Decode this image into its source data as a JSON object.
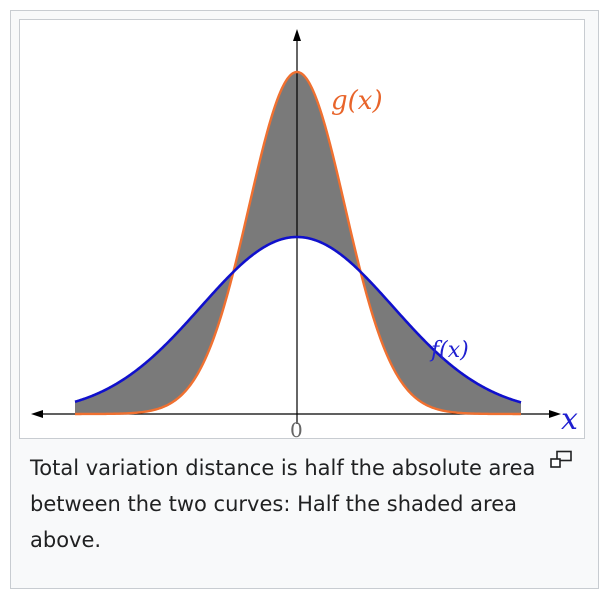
{
  "figure": {
    "caption": "Total variation distance is half the absolute area between the two curves: Half the shaded area above.",
    "enlarge_icon": "magnify-clip-icon",
    "labels": {
      "g": "g(x)",
      "f": "f(x)",
      "x_axis": "x",
      "origin": "0"
    },
    "colors": {
      "g_curve": "#f07030",
      "f_curve": "#1010cc",
      "shade": "#7a7a7a",
      "axis": "#000000",
      "g_label": "#e8642a",
      "f_label": "#2020d0",
      "x_label": "#2020d0",
      "frame_border": "#c8ccd1",
      "panel_bg": "#f8f9fa"
    }
  }
}
